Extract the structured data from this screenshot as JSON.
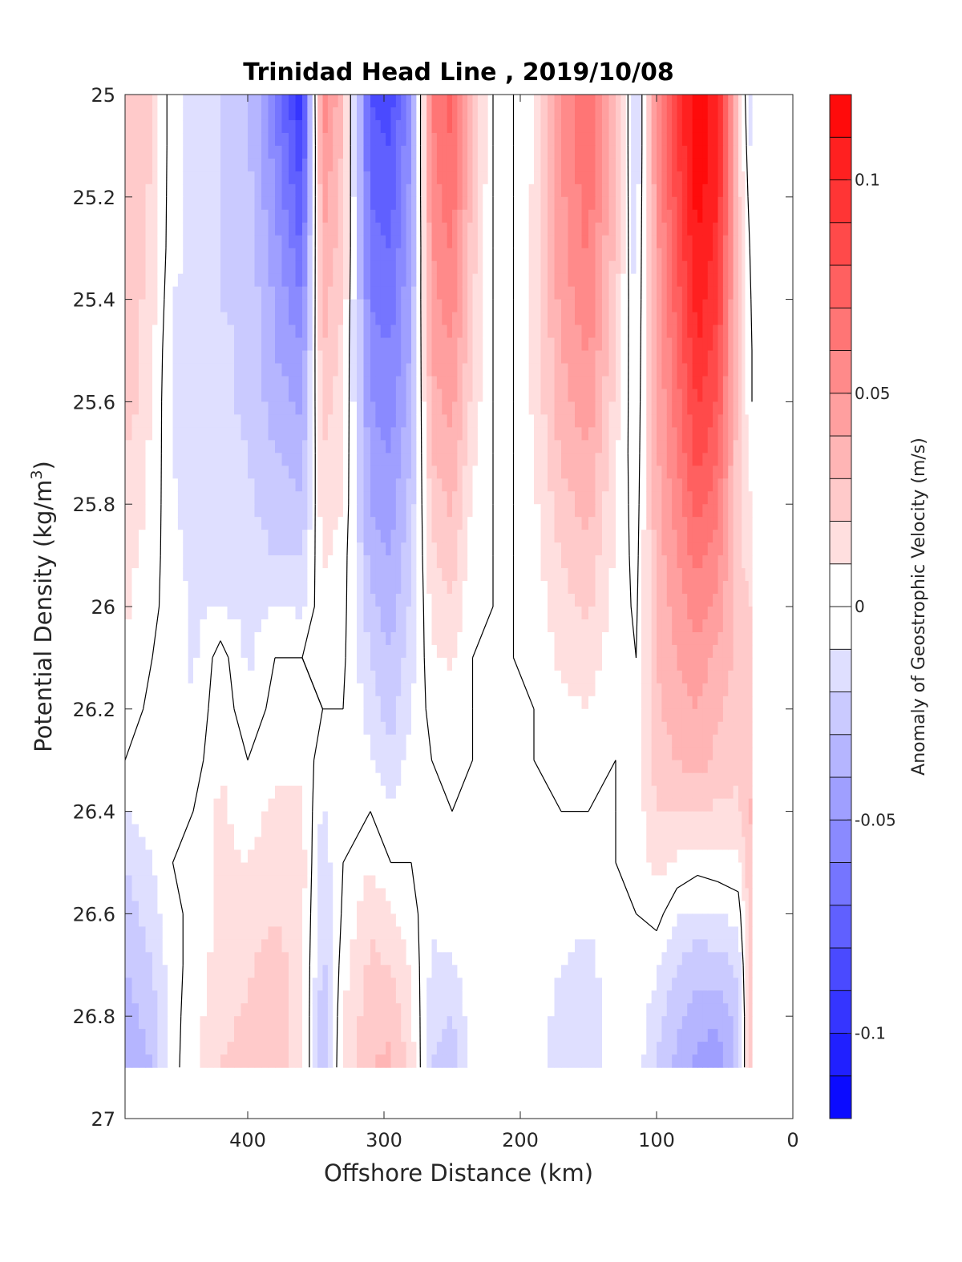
{
  "chart_data": {
    "type": "heatmap",
    "title": "Trinidad Head Line , 2019/10/08",
    "xlabel": "Offshore Distance (km)",
    "ylabel": "Potential Density (kg/m",
    "ylabel_superscript": "3",
    "ylabel_suffix": ")",
    "colorbar_label": "Anomaly of Geostrophic Velocity (m/s)",
    "xlim": [
      490,
      0
    ],
    "ylim": [
      25,
      27
    ],
    "x_reversed": true,
    "y_reversed": true,
    "xticks": [
      400,
      300,
      200,
      100,
      0
    ],
    "xtick_labels": [
      "400",
      "300",
      "200",
      "100",
      "0"
    ],
    "yticks": [
      25,
      25.2,
      25.4,
      25.6,
      25.8,
      26,
      26.2,
      26.4,
      26.6,
      26.8,
      27
    ],
    "ytick_labels": [
      "25",
      "25.2",
      "25.4",
      "25.6",
      "25.8",
      "26",
      "26.2",
      "26.4",
      "26.6",
      "26.8",
      "27"
    ],
    "colorbar_limits": [
      -0.12,
      0.12
    ],
    "colorbar_ticks": [
      0.1,
      0.05,
      0,
      -0.05,
      -0.1
    ],
    "colorbar_tick_labels": [
      "0.1",
      "0.05",
      "0",
      "-0.05",
      "-0.1"
    ],
    "colormap": "blue-white-red",
    "color_max": "#ff0000",
    "color_min": "#0000ff",
    "data_extent": {
      "x": [
        490,
        30
      ],
      "y": [
        25,
        26.9
      ]
    },
    "x_grid": [
      490,
      470,
      455,
      440,
      420,
      400,
      380,
      360,
      345,
      330,
      310,
      295,
      280,
      265,
      250,
      235,
      220,
      205,
      190,
      170,
      150,
      130,
      115,
      100,
      85,
      70,
      55,
      40,
      30
    ],
    "y_grid": [
      25.0,
      25.1,
      25.2,
      25.3,
      25.4,
      25.5,
      25.6,
      25.7,
      25.8,
      25.9,
      26.0,
      26.1,
      26.2,
      26.3,
      26.4,
      26.5,
      26.6,
      26.7,
      26.8,
      26.9
    ],
    "columns": [
      {
        "x": 490,
        "values": [
          0.03,
          0.03,
          0.03,
          0.03,
          0.03,
          0.03,
          0.03,
          0.02,
          0.02,
          0.015,
          0.012,
          0.008,
          0.004,
          0.0,
          -0.01,
          -0.02,
          -0.025,
          -0.03,
          -0.035,
          -0.04
        ]
      },
      {
        "x": 470,
        "values": [
          0.02,
          0.02,
          0.018,
          0.016,
          0.014,
          0.012,
          0.01,
          0.008,
          0.006,
          0.004,
          0.002,
          0.0,
          -0.002,
          -0.004,
          -0.006,
          -0.01,
          -0.015,
          -0.02,
          -0.025,
          -0.03
        ]
      },
      {
        "x": 455,
        "values": [
          -0.008,
          -0.008,
          -0.008,
          -0.008,
          -0.01,
          -0.012,
          -0.012,
          -0.01,
          -0.008,
          -0.006,
          -0.004,
          -0.002,
          0.0,
          0.0,
          0.0,
          0.0,
          -0.002,
          -0.004,
          -0.004,
          -0.004
        ]
      },
      {
        "x": 440,
        "values": [
          -0.012,
          -0.012,
          -0.012,
          -0.012,
          -0.012,
          -0.014,
          -0.016,
          -0.018,
          -0.016,
          -0.014,
          -0.012,
          -0.012,
          -0.01,
          -0.006,
          0.0,
          0.002,
          0.002,
          0.004,
          0.006,
          0.008
        ]
      },
      {
        "x": 420,
        "values": [
          -0.02,
          -0.02,
          -0.02,
          -0.02,
          -0.02,
          -0.018,
          -0.018,
          -0.016,
          -0.014,
          -0.012,
          -0.01,
          0.005,
          0.008,
          0.01,
          0.012,
          0.012,
          0.012,
          0.014,
          0.016,
          0.02
        ]
      },
      {
        "x": 400,
        "values": [
          -0.028,
          -0.028,
          -0.026,
          -0.024,
          -0.022,
          -0.022,
          -0.022,
          -0.02,
          -0.018,
          -0.016,
          -0.014,
          -0.012,
          -0.008,
          0.0,
          0.006,
          0.01,
          0.014,
          0.018,
          0.022,
          0.024
        ]
      },
      {
        "x": 380,
        "values": [
          -0.06,
          -0.055,
          -0.05,
          -0.045,
          -0.042,
          -0.04,
          -0.035,
          -0.03,
          -0.025,
          -0.02,
          -0.01,
          0.0,
          0.004,
          0.008,
          0.012,
          0.016,
          0.02,
          0.025,
          0.028,
          0.03
        ]
      },
      {
        "x": 360,
        "values": [
          -0.1,
          -0.09,
          -0.08,
          -0.07,
          -0.06,
          -0.05,
          -0.042,
          -0.035,
          -0.028,
          -0.02,
          -0.012,
          0.0,
          0.004,
          0.008,
          0.012,
          0.014,
          0.014,
          0.014,
          0.014,
          0.014
        ]
      },
      {
        "x": 345,
        "values": [
          0.06,
          0.05,
          0.045,
          0.04,
          0.035,
          0.03,
          0.025,
          0.02,
          0.016,
          0.012,
          0.008,
          0.002,
          0.0,
          -0.006,
          -0.012,
          -0.016,
          -0.02,
          -0.024,
          -0.026,
          -0.026
        ]
      },
      {
        "x": 330,
        "values": [
          0.03,
          0.028,
          0.026,
          0.024,
          0.02,
          0.016,
          0.014,
          0.012,
          0.01,
          0.006,
          0.004,
          0.002,
          0.0,
          0.0,
          0.0,
          0.0,
          0.002,
          0.006,
          0.01,
          0.012
        ]
      },
      {
        "x": 310,
        "values": [
          -0.08,
          -0.075,
          -0.07,
          -0.065,
          -0.06,
          -0.055,
          -0.05,
          -0.045,
          -0.04,
          -0.035,
          -0.028,
          -0.02,
          -0.014,
          -0.008,
          0.0,
          0.01,
          0.018,
          0.022,
          0.026,
          0.03
        ]
      },
      {
        "x": 295,
        "values": [
          -0.085,
          -0.08,
          -0.075,
          -0.07,
          -0.065,
          -0.06,
          -0.055,
          -0.05,
          -0.045,
          -0.04,
          -0.035,
          -0.03,
          -0.025,
          -0.018,
          -0.01,
          0.0,
          0.012,
          0.02,
          0.028,
          0.032
        ]
      },
      {
        "x": 280,
        "values": [
          -0.05,
          -0.048,
          -0.046,
          -0.044,
          -0.04,
          -0.038,
          -0.034,
          -0.03,
          -0.026,
          -0.022,
          -0.018,
          -0.014,
          -0.01,
          -0.006,
          -0.002,
          0.0,
          0.004,
          0.008,
          0.012,
          0.016
        ]
      },
      {
        "x": 265,
        "values": [
          0.06,
          0.058,
          0.055,
          0.05,
          0.046,
          0.042,
          0.036,
          0.03,
          0.024,
          0.018,
          0.012,
          0.008,
          0.004,
          0.0,
          0.0,
          -0.004,
          -0.008,
          -0.012,
          -0.016,
          -0.02
        ]
      },
      {
        "x": 250,
        "values": [
          0.075,
          0.07,
          0.066,
          0.062,
          0.056,
          0.05,
          0.044,
          0.038,
          0.032,
          0.026,
          0.018,
          0.012,
          0.006,
          0.002,
          0.0,
          0.0,
          -0.004,
          -0.012,
          -0.02,
          -0.028
        ]
      },
      {
        "x": 235,
        "values": [
          0.03,
          0.028,
          0.026,
          0.024,
          0.022,
          0.02,
          0.016,
          0.012,
          0.008,
          0.004,
          0.002,
          0.0,
          0.0,
          0.0,
          0.0,
          0.0,
          0.0,
          -0.002,
          -0.004,
          -0.004
        ]
      },
      {
        "x": 220,
        "values": [
          0.0,
          0.0,
          0.0,
          0.0,
          0.0,
          0.0,
          0.0,
          0.0,
          0.0,
          0.0,
          0.0,
          0.0,
          0.0,
          0.0,
          0.0,
          0.0,
          0.0,
          0.0,
          0.0,
          0.0
        ]
      },
      {
        "x": 205,
        "values": [
          0.0,
          0.0,
          0.0,
          0.0,
          0.0,
          0.0,
          0.0,
          0.0,
          0.0,
          0.0,
          0.0,
          0.0,
          0.0,
          0.0,
          0.0,
          0.0,
          0.0,
          0.0,
          0.0,
          0.0
        ]
      },
      {
        "x": 190,
        "values": [
          0.01,
          0.01,
          0.012,
          0.012,
          0.012,
          0.012,
          0.012,
          0.01,
          0.008,
          0.006,
          0.004,
          0.002,
          0.0,
          0.0,
          0.0,
          0.0,
          0.0,
          -0.002,
          -0.004,
          -0.006
        ]
      },
      {
        "x": 170,
        "values": [
          0.05,
          0.05,
          0.048,
          0.046,
          0.044,
          0.04,
          0.036,
          0.032,
          0.026,
          0.02,
          0.016,
          0.012,
          0.008,
          0.004,
          0.0,
          0.0,
          -0.004,
          -0.01,
          -0.014,
          -0.016
        ]
      },
      {
        "x": 150,
        "values": [
          0.07,
          0.068,
          0.066,
          0.062,
          0.058,
          0.052,
          0.046,
          0.04,
          0.034,
          0.028,
          0.022,
          0.016,
          0.01,
          0.004,
          0.0,
          0.0,
          -0.008,
          -0.014,
          -0.018,
          -0.02
        ]
      },
      {
        "x": 130,
        "values": [
          0.03,
          0.03,
          0.028,
          0.026,
          0.024,
          0.02,
          0.016,
          0.012,
          0.01,
          0.008,
          0.006,
          0.004,
          0.002,
          0.0,
          0.0,
          0.0,
          -0.002,
          -0.002,
          -0.002,
          -0.002
        ]
      },
      {
        "x": 115,
        "values": [
          -0.02,
          -0.02,
          -0.018,
          -0.016,
          -0.014,
          -0.012,
          -0.01,
          -0.008,
          -0.006,
          -0.004,
          -0.002,
          0.0,
          0.002,
          0.004,
          0.004,
          0.002,
          0.0,
          -0.002,
          -0.004,
          -0.004
        ]
      },
      {
        "x": 100,
        "values": [
          0.05,
          0.05,
          0.048,
          0.046,
          0.044,
          0.042,
          0.04,
          0.038,
          0.036,
          0.034,
          0.032,
          0.03,
          0.028,
          0.025,
          0.02,
          0.014,
          0.004,
          -0.008,
          -0.016,
          -0.022
        ]
      },
      {
        "x": 85,
        "values": [
          0.09,
          0.088,
          0.085,
          0.08,
          0.075,
          0.07,
          0.065,
          0.06,
          0.055,
          0.05,
          0.045,
          0.04,
          0.036,
          0.03,
          0.02,
          0.008,
          -0.008,
          -0.02,
          -0.028,
          -0.032
        ]
      },
      {
        "x": 70,
        "values": [
          0.12,
          0.12,
          0.115,
          0.11,
          0.105,
          0.1,
          0.092,
          0.085,
          0.075,
          0.065,
          0.055,
          0.045,
          0.04,
          0.035,
          0.02,
          0.004,
          -0.012,
          -0.026,
          -0.036,
          -0.044
        ]
      },
      {
        "x": 55,
        "values": [
          0.1,
          0.1,
          0.1,
          0.095,
          0.09,
          0.085,
          0.078,
          0.07,
          0.062,
          0.054,
          0.046,
          0.038,
          0.032,
          0.026,
          0.018,
          0.006,
          -0.01,
          -0.024,
          -0.036,
          -0.05
        ]
      },
      {
        "x": 40,
        "values": [
          0.02,
          0.022,
          0.024,
          0.026,
          0.026,
          0.024,
          0.024,
          0.024,
          0.022,
          0.022,
          0.024,
          0.026,
          0.024,
          0.022,
          0.018,
          0.008,
          -0.006,
          -0.018,
          -0.026,
          -0.026
        ]
      },
      {
        "x": 30,
        "values": [
          -0.02,
          -0.015,
          -0.01,
          -0.005,
          -0.002,
          0.0,
          0.0,
          0.005,
          0.01,
          0.015,
          0.02,
          0.025,
          0.028,
          0.03,
          0.032,
          0.032,
          0.032,
          0.032,
          0.032,
          0.032
        ]
      }
    ]
  }
}
